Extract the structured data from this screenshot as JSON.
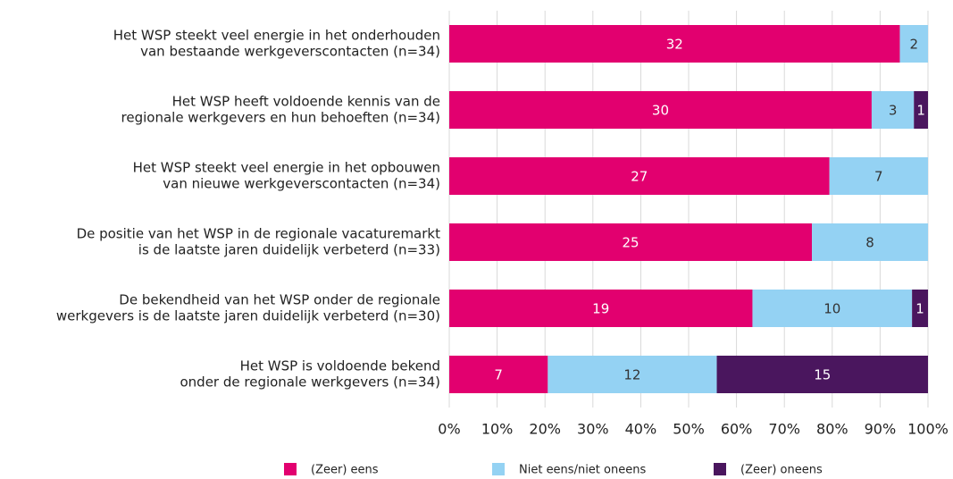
{
  "chart_data": {
    "type": "bar",
    "orientation": "horizontal",
    "stack": "percent",
    "categories": [
      [
        "Het WSP steekt veel energie in het onderhouden",
        "van bestaande werkgeverscontacten (n=34)"
      ],
      [
        "Het WSP heeft voldoende kennis van de",
        "regionale werkgevers en hun behoeften (n=34)"
      ],
      [
        "Het WSP steekt veel energie in het opbouwen",
        "van nieuwe werkgeverscontacten (n=34)"
      ],
      [
        "De positie van het WSP in de regionale vacaturemarkt",
        "is de laatste jaren duidelijk verbeterd (n=33)"
      ],
      [
        "De bekendheid van het WSP onder de regionale",
        "werkgevers is de laatste jaren duidelijk verbeterd (n=30)"
      ],
      [
        "Het WSP is voldoende bekend",
        "onder de regionale werkgevers (n=34)"
      ]
    ],
    "series": [
      {
        "name": "(Zeer) eens",
        "color": "#e2006f",
        "label_color": "#ffffff",
        "values": [
          32,
          30,
          27,
          25,
          19,
          7
        ]
      },
      {
        "name": "Niet eens/niet oneens",
        "color": "#94d2f3",
        "label_color": "#333333",
        "values": [
          2,
          3,
          7,
          8,
          10,
          12
        ]
      },
      {
        "name": "(Zeer) oneens",
        "color": "#4a165e",
        "label_color": "#ffffff",
        "values": [
          null,
          1,
          null,
          null,
          1,
          15
        ]
      }
    ],
    "xlim": [
      0,
      100
    ],
    "xticks": [
      {
        "value": 0,
        "label": "0%"
      },
      {
        "value": 10,
        "label": "10%"
      },
      {
        "value": 20,
        "label": "20%"
      },
      {
        "value": 30,
        "label": "30%"
      },
      {
        "value": 40,
        "label": "40%"
      },
      {
        "value": 50,
        "label": "50%"
      },
      {
        "value": 60,
        "label": "60%"
      },
      {
        "value": 70,
        "label": "70%"
      },
      {
        "value": 80,
        "label": "80%"
      },
      {
        "value": 90,
        "label": "90%"
      },
      {
        "value": 100,
        "label": "100%"
      }
    ],
    "grid": true,
    "legend": "bottom"
  }
}
